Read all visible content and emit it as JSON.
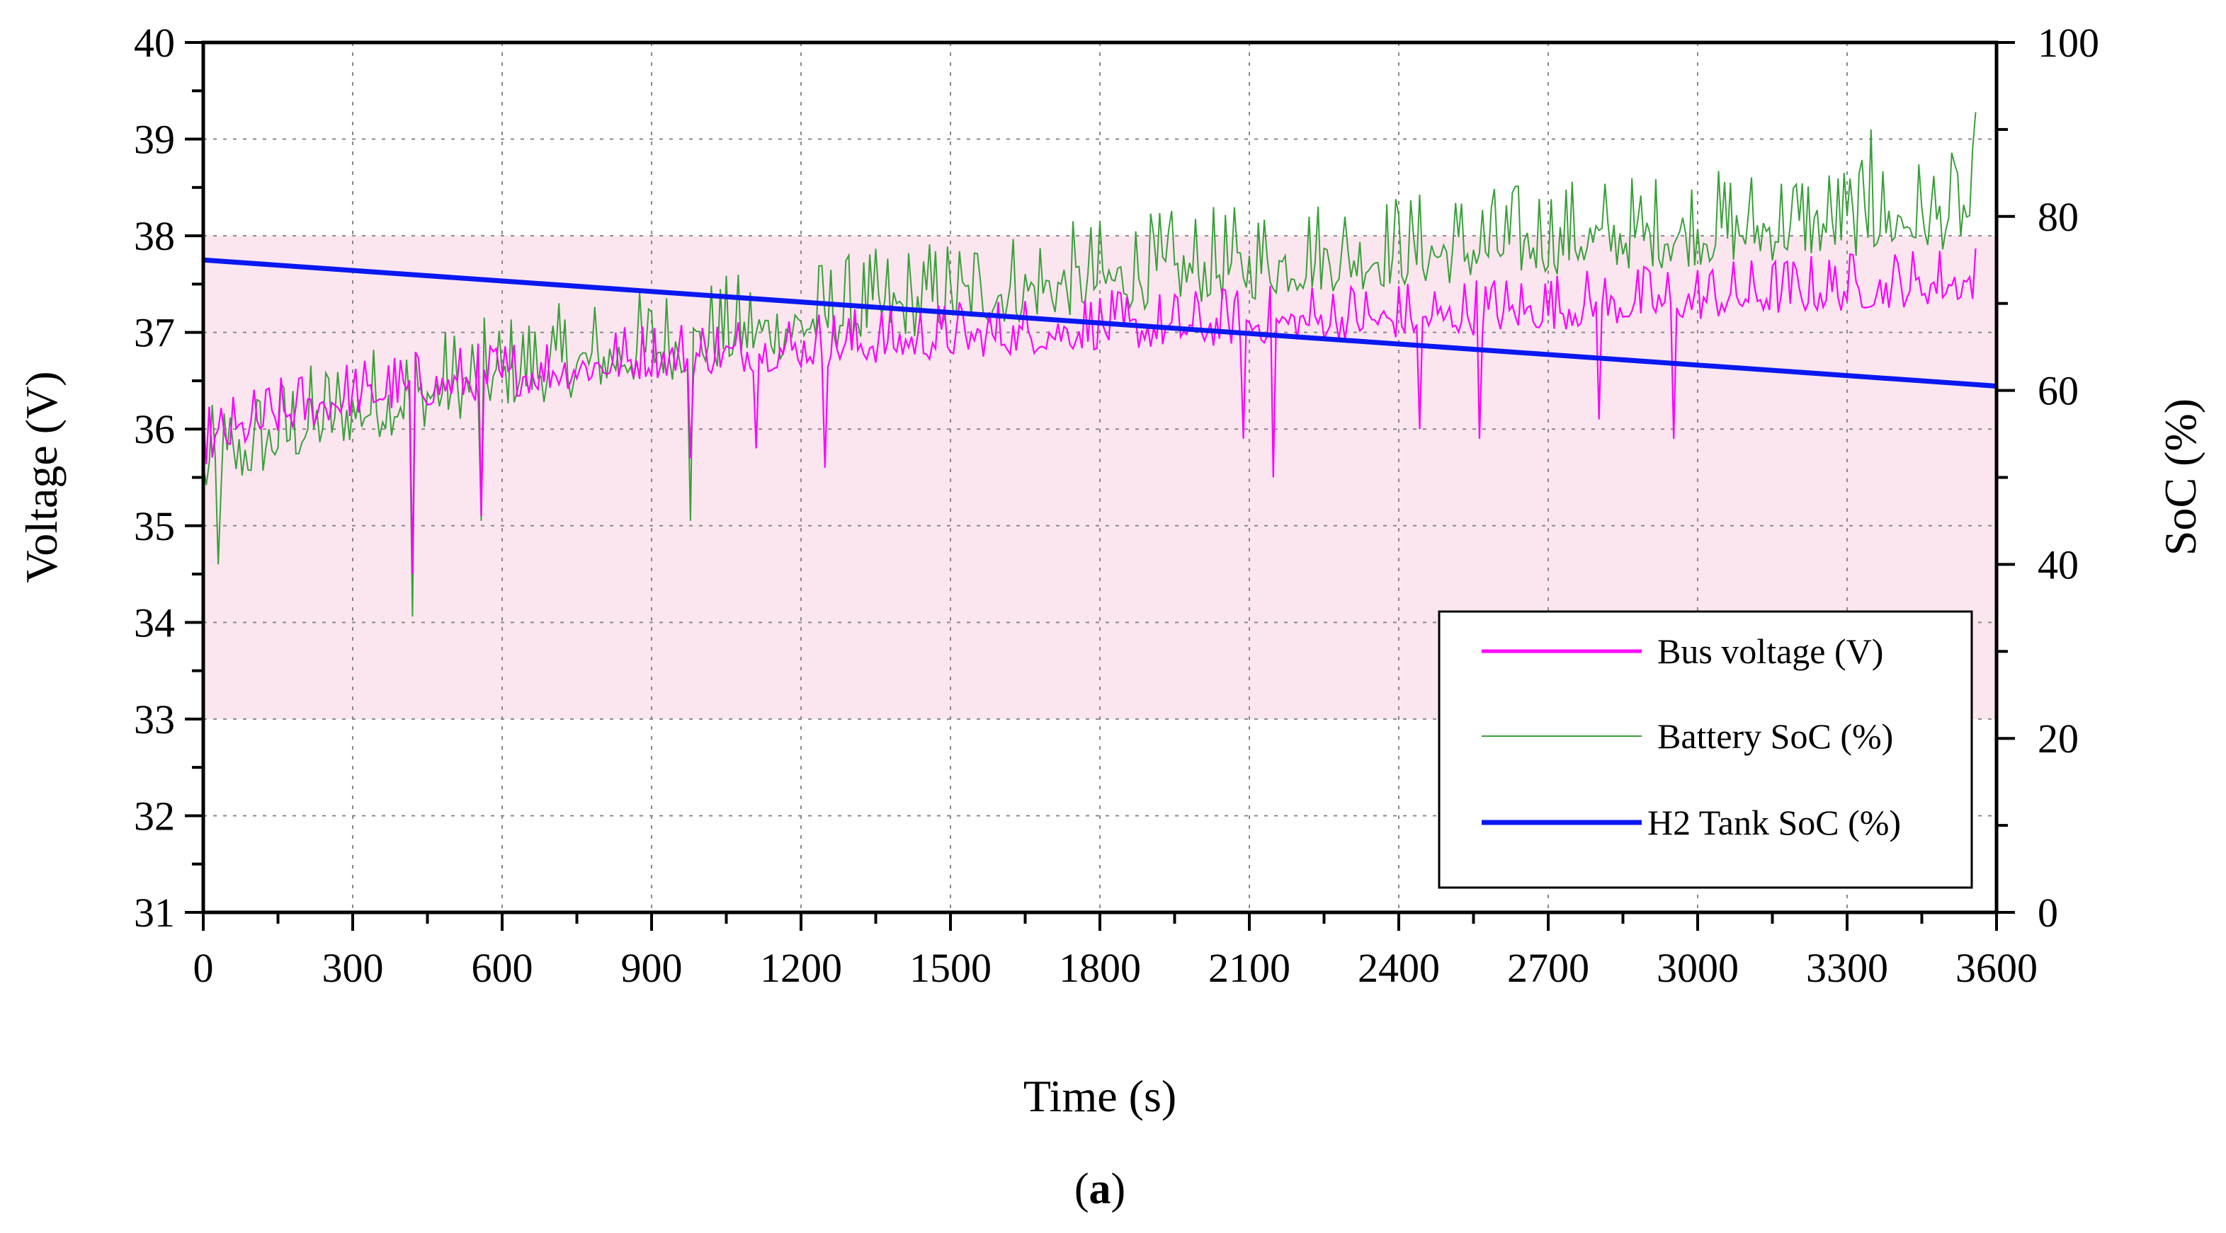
{
  "chart_data": {
    "type": "line",
    "title": "",
    "caption_open": "(",
    "caption_letter": "a",
    "caption_close": ")",
    "xlabel": "Time (s)",
    "ylabel_left": "Voltage (V)",
    "ylabel_right": "SoC (%)",
    "xlim": [
      0,
      3600
    ],
    "ylim_left": [
      31,
      40
    ],
    "ylim_right": [
      0,
      100
    ],
    "x_ticks": [
      0,
      300,
      600,
      900,
      1200,
      1500,
      1800,
      2100,
      2400,
      2700,
      3000,
      3300,
      3600
    ],
    "x_tick_labels": [
      "0",
      "300",
      "600",
      "900",
      "1200",
      "1500",
      "1800",
      "2100",
      "2400",
      "2700",
      "3000",
      "3300",
      "3600"
    ],
    "y_left_ticks": [
      31,
      32,
      33,
      34,
      35,
      36,
      37,
      38,
      39,
      40
    ],
    "y_left_tick_labels": [
      "31",
      "32",
      "33",
      "34",
      "35",
      "36",
      "37",
      "38",
      "39",
      "40"
    ],
    "y_right_ticks": [
      0,
      20,
      40,
      60,
      80,
      100
    ],
    "y_right_tick_labels": [
      "0",
      "20",
      "40",
      "60",
      "80",
      "100"
    ],
    "grid": true,
    "legend_position": "bottom-right",
    "shaded_band_voltage": [
      33,
      38
    ],
    "shaded_band_color": "#fbe6ef",
    "series": [
      {
        "name": "Bus voltage (V)",
        "axis": "left",
        "color": "#ff00ff",
        "x": [
          0,
          150,
          300,
          450,
          600,
          750,
          900,
          1050,
          1200,
          1350,
          1500,
          1650,
          1800,
          1950,
          2100,
          2250,
          2400,
          2550,
          2700,
          2850,
          3000,
          3150,
          3300,
          3450,
          3560
        ],
        "values": [
          35.8,
          36.1,
          36.3,
          36.4,
          36.5,
          36.6,
          36.7,
          36.75,
          36.8,
          36.85,
          36.9,
          36.95,
          37.0,
          37.0,
          37.05,
          37.1,
          37.1,
          37.15,
          37.2,
          37.25,
          37.3,
          37.35,
          37.4,
          37.45,
          37.5
        ],
        "noise_amplitude": 0.25,
        "spikes": [
          {
            "x": 420,
            "value": 34.5
          },
          {
            "x": 560,
            "value": 35.1
          },
          {
            "x": 980,
            "value": 35.7
          },
          {
            "x": 1110,
            "value": 35.8
          },
          {
            "x": 1250,
            "value": 35.6
          },
          {
            "x": 2090,
            "value": 35.9
          },
          {
            "x": 2150,
            "value": 35.5
          },
          {
            "x": 2440,
            "value": 36.0
          },
          {
            "x": 2560,
            "value": 35.9
          },
          {
            "x": 2800,
            "value": 36.1
          },
          {
            "x": 2950,
            "value": 35.9
          }
        ]
      },
      {
        "name": "Battery SoC (%)",
        "axis": "right",
        "color": "#3aa03a",
        "x": [
          0,
          150,
          300,
          450,
          600,
          750,
          900,
          1050,
          1200,
          1350,
          1500,
          1650,
          1800,
          1950,
          2100,
          2250,
          2400,
          2550,
          2700,
          2850,
          3000,
          3150,
          3300,
          3450,
          3560
        ],
        "values": [
          50,
          54,
          57,
          59,
          61,
          62.5,
          64,
          65.5,
          67,
          68.5,
          70,
          71,
          72,
          73,
          73.5,
          74.5,
          75,
          75.5,
          76.5,
          77,
          77.5,
          78,
          78.5,
          79,
          80
        ],
        "noise_amplitude": 4.5,
        "spikes": [
          {
            "x": 420,
            "value": 34
          },
          {
            "x": 560,
            "value": 45
          },
          {
            "x": 980,
            "value": 45
          },
          {
            "x": 30,
            "value": 40
          },
          {
            "x": 3560,
            "value": 92
          },
          {
            "x": 3350,
            "value": 90
          }
        ]
      },
      {
        "name": "H2 Tank SoC (%)",
        "axis": "right",
        "color": "#0a18f0",
        "x": [
          0,
          3600
        ],
        "values": [
          75,
          60.5
        ]
      }
    ]
  }
}
